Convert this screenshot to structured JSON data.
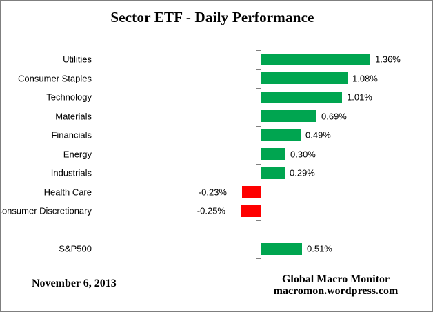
{
  "chart_data": {
    "type": "bar",
    "orientation": "horizontal",
    "title": "Sector ETF - Daily Performance",
    "categories": [
      "Utilities",
      "Consumer Staples",
      "Technology",
      "Materials",
      "Financials",
      "Energy",
      "Industrials",
      "Health Care",
      "Consumer Discretionary",
      "",
      "S&P500"
    ],
    "values": [
      1.36,
      1.08,
      1.01,
      0.69,
      0.49,
      0.3,
      0.29,
      -0.23,
      -0.25,
      null,
      0.51
    ],
    "value_labels": [
      "1.36%",
      "1.08%",
      "1.01%",
      "0.69%",
      "0.49%",
      "0.30%",
      "0.29%",
      "-0.23%",
      "-0.25%",
      "",
      "0.51%"
    ],
    "grid": false,
    "legend": false,
    "x_axis_tick_labels": [],
    "colors": {
      "positive": "#00a550",
      "negative": "#fe0000",
      "axis": "#808080"
    }
  },
  "footer": {
    "date": "November 6, 2013",
    "source_name": "Global Macro Monitor",
    "source_url": "macromon.wordpress.com"
  }
}
